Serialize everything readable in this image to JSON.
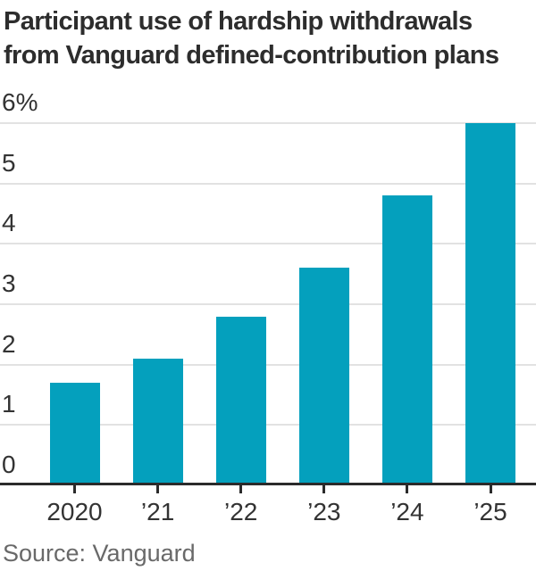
{
  "title": {
    "line1": "Participant use of hardship withdrawals",
    "line2": "from Vanguard defined-contribution plans"
  },
  "source": "Source: Vanguard",
  "colors": {
    "bar": "#04a0bd",
    "axis": "#2b2b2b",
    "gridline": "#e2e2e2",
    "title_text": "#2d2d2d",
    "axis_text": "#333333",
    "source_text": "#696969"
  },
  "chart_data": {
    "type": "bar",
    "title": "Participant use of hardship withdrawals from Vanguard defined-contribution plans",
    "categories": [
      "2020",
      "’21",
      "’22",
      "’23",
      "’24",
      "’25"
    ],
    "values": [
      1.7,
      2.1,
      2.8,
      3.6,
      4.8,
      6.0
    ],
    "unit": "%",
    "xlabel": "",
    "ylabel": "",
    "ylim": [
      0,
      6
    ],
    "yticks": [
      0,
      1,
      2,
      3,
      4,
      5,
      6
    ],
    "ytick_labels": [
      "0",
      "1",
      "2",
      "3",
      "4",
      "5",
      "6%"
    ],
    "grid": true,
    "legend": "none",
    "bar_color": "#04a0bd"
  }
}
